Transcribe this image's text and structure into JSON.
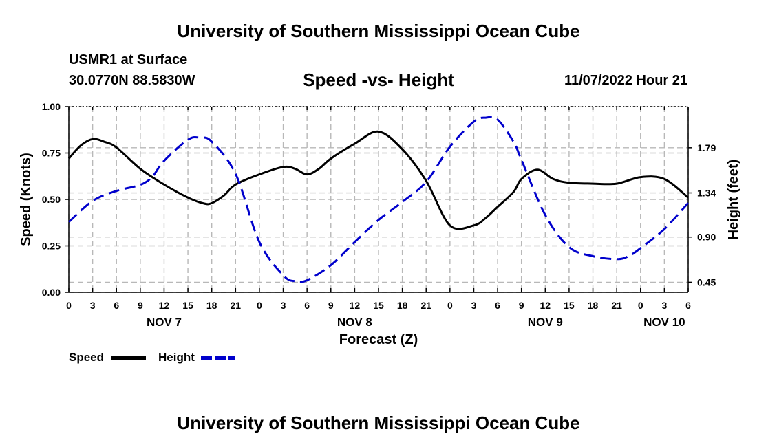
{
  "header": {
    "title": "University of Southern Mississippi Ocean Cube",
    "station": "USMR1 at Surface",
    "coordinates": "30.0770N  88.5830W",
    "subtitle": "Speed -vs- Height",
    "datetime": "11/07/2022 Hour 21"
  },
  "footer": {
    "title": "University of Southern Mississippi Ocean Cube"
  },
  "colors": {
    "speed": "#000000",
    "height": "#0000cc",
    "grid": "#b8b8b8"
  },
  "chart_data": {
    "type": "line",
    "title": "Speed -vs- Height",
    "xlabel": "Forecast (Z)",
    "ylabel": "Speed (Knots)",
    "y2label": "Height (feet)",
    "x_unit": "hours since NOV 7 00Z",
    "xlim": [
      0,
      78
    ],
    "x_ticks": [
      0,
      3,
      6,
      9,
      12,
      15,
      18,
      21,
      24,
      27,
      30,
      33,
      36,
      39,
      42,
      45,
      48,
      51,
      54,
      57,
      60,
      63,
      66,
      69,
      72,
      75,
      78
    ],
    "x_tick_labels": [
      "0",
      "3",
      "6",
      "9",
      "12",
      "15",
      "18",
      "21",
      "0",
      "3",
      "6",
      "9",
      "12",
      "15",
      "18",
      "21",
      "0",
      "3",
      "6",
      "9",
      "12",
      "15",
      "18",
      "21",
      "0",
      "3",
      "6"
    ],
    "date_labels": [
      {
        "x": 12,
        "label": "NOV 7"
      },
      {
        "x": 36,
        "label": "NOV 8"
      },
      {
        "x": 60,
        "label": "NOV 9"
      },
      {
        "x": 75,
        "label": "NOV 10"
      }
    ],
    "ylim": [
      0,
      1
    ],
    "y_ticks": [
      0,
      0.25,
      0.5,
      0.75,
      1
    ],
    "y_tick_labels": [
      "0.00",
      "0.25",
      "0.50",
      "0.75",
      "1.00"
    ],
    "y2lim": [
      0.35,
      2.2
    ],
    "y2_ticks": [
      0.45,
      0.9,
      1.34,
      1.79
    ],
    "y2_tick_labels": [
      "0.45",
      "0.90",
      "1.34",
      "1.79"
    ],
    "grid": true,
    "legend": [
      {
        "name": "Speed",
        "style": "solid"
      },
      {
        "name": "Height",
        "style": "dashed"
      }
    ],
    "series": [
      {
        "name": "Speed",
        "axis": "left",
        "style": "solid",
        "x": [
          0,
          1.5,
          3,
          4.5,
          6,
          9,
          12,
          15,
          17,
          18,
          19.5,
          21,
          24,
          27,
          28.5,
          30,
          31.5,
          33,
          36,
          39,
          42,
          45,
          48,
          51,
          52.5,
          54,
          56,
          57,
          59,
          61,
          63,
          66,
          69,
          72,
          75,
          78
        ],
        "values": [
          0.72,
          0.79,
          0.825,
          0.81,
          0.78,
          0.665,
          0.58,
          0.51,
          0.478,
          0.48,
          0.52,
          0.58,
          0.635,
          0.675,
          0.665,
          0.635,
          0.665,
          0.72,
          0.8,
          0.865,
          0.77,
          0.6,
          0.36,
          0.36,
          0.4,
          0.46,
          0.54,
          0.61,
          0.66,
          0.61,
          0.59,
          0.585,
          0.585,
          0.62,
          0.61,
          0.51
        ]
      },
      {
        "name": "Height",
        "axis": "right",
        "style": "dashed",
        "x": [
          0,
          3,
          6,
          9,
          10.5,
          12,
          15,
          16.5,
          18,
          21,
          24,
          27,
          28.5,
          30,
          33,
          36,
          39,
          42,
          45,
          48,
          51,
          52.5,
          54,
          56,
          57,
          60,
          63,
          66,
          69,
          70.5,
          72,
          75,
          78
        ],
        "values": [
          1.05,
          1.26,
          1.36,
          1.42,
          1.5,
          1.66,
          1.87,
          1.89,
          1.85,
          1.53,
          0.85,
          0.52,
          0.46,
          0.47,
          0.62,
          0.85,
          1.07,
          1.25,
          1.45,
          1.8,
          2.05,
          2.09,
          2.07,
          1.85,
          1.67,
          1.12,
          0.8,
          0.71,
          0.68,
          0.71,
          0.79,
          0.98,
          1.24
        ]
      }
    ]
  }
}
